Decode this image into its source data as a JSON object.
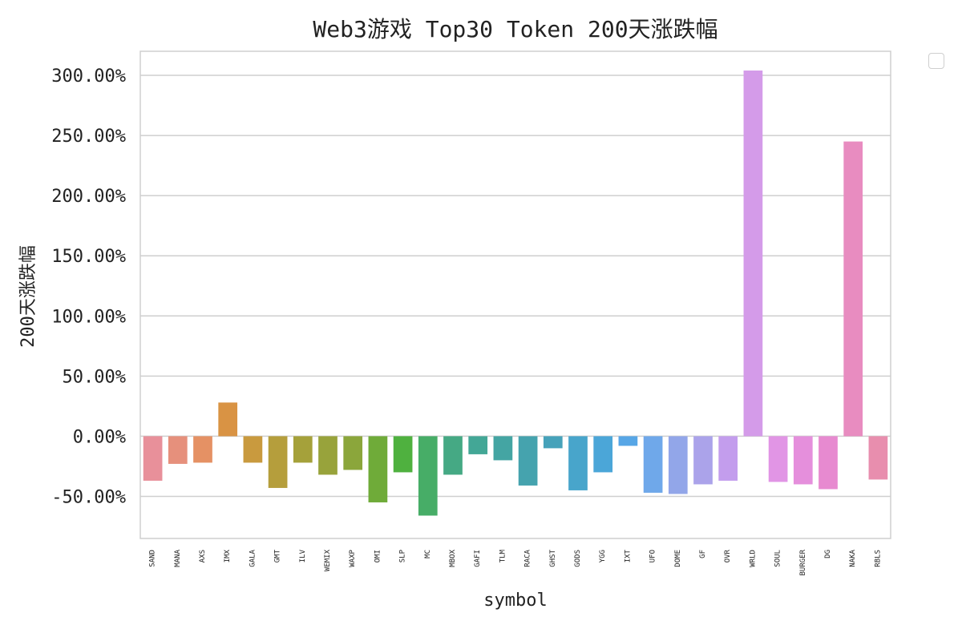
{
  "chart_data": {
    "type": "bar",
    "title": "Web3游戏 Top30 Token 200天涨跌幅",
    "xlabel": "symbol",
    "ylabel": "200天涨跌幅",
    "ylim": [
      -85,
      320
    ],
    "yticks": [
      -50,
      0,
      50,
      100,
      150,
      200,
      250,
      300
    ],
    "ytick_labels": [
      "-50.00%",
      "0.00%",
      "50.00%",
      "100.00%",
      "150.00%",
      "200.00%",
      "250.00%",
      "300.00%"
    ],
    "grid": true,
    "legend": "top-right (empty)",
    "categories": [
      "SAND",
      "MANA",
      "AXS",
      "IMX",
      "GALA",
      "GMT",
      "ILV",
      "WEMIX",
      "WAXP",
      "OMI",
      "SLP",
      "MC",
      "MBOX",
      "GAFI",
      "TLM",
      "RACA",
      "GHST",
      "GODS",
      "YGG",
      "IXT",
      "UFO",
      "DOME",
      "GF",
      "OVR",
      "WRLD",
      "SOUL",
      "BURGER",
      "DG",
      "NAKA",
      "RBLS"
    ],
    "values": [
      -37,
      -23,
      -22,
      28,
      -22,
      -43,
      -22,
      -32,
      -28,
      -55,
      -30,
      -66,
      -32,
      -15,
      -20,
      -41,
      -10,
      -45,
      -30,
      -8,
      -47,
      -48,
      -40,
      -37,
      304,
      -38,
      -40,
      -44,
      245,
      -36
    ],
    "colors": [
      "#e8909a",
      "#e6907c",
      "#e59164",
      "#d99344",
      "#c99a3e",
      "#b59e3c",
      "#a5a13a",
      "#98a33b",
      "#8ba63b",
      "#6fab39",
      "#4fb13f",
      "#47ad67",
      "#45a984",
      "#43a796",
      "#44a5a3",
      "#45a3ae",
      "#46a2ba",
      "#48a5cb",
      "#4ba6d8",
      "#57a6e6",
      "#6fa8ea",
      "#92a6e9",
      "#aba3ea",
      "#c39ded",
      "#d49be9",
      "#e195e5",
      "#e58fdc",
      "#e78ad0",
      "#e88cc0",
      "#e88eae"
    ]
  }
}
